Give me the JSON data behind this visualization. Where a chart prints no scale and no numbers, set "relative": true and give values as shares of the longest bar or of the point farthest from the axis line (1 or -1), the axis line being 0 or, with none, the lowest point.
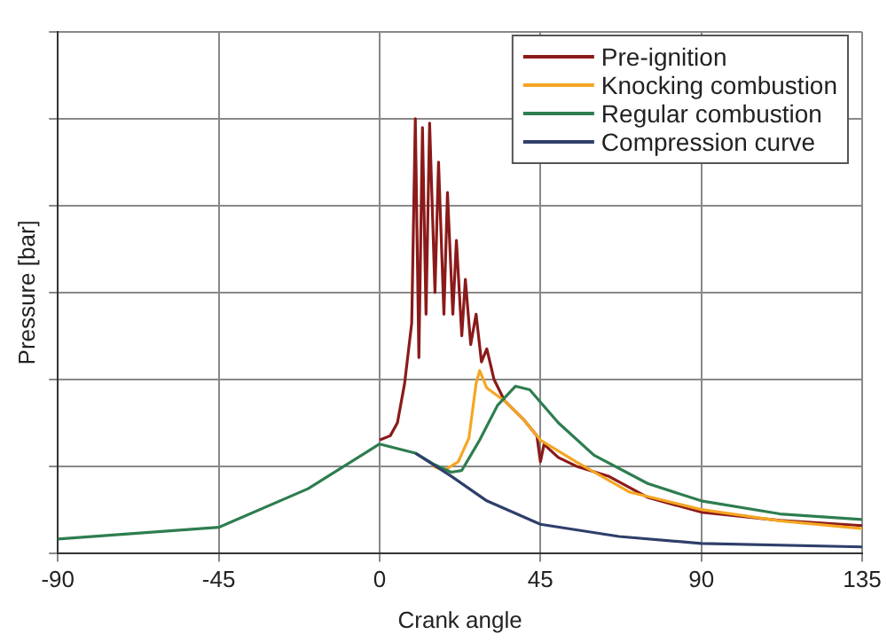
{
  "chart_data": {
    "type": "line",
    "relative": true,
    "xlabel": "Crank angle",
    "ylabel": "Pressure [bar]",
    "xlim": [
      -90,
      135
    ],
    "xticks": [
      -90,
      -45,
      0,
      45,
      90,
      135
    ],
    "grid": true,
    "legend": "top right",
    "marker": "none",
    "line_style": "solid",
    "series": [
      {
        "name": "Pre-ignition",
        "color": "#8b1a1a",
        "x": [
          0,
          3,
          5,
          7,
          9,
          10,
          11,
          12,
          13,
          14,
          15.5,
          16.5,
          18,
          19,
          20.5,
          21.5,
          23,
          24,
          25.5,
          27,
          28.5,
          30,
          32,
          35,
          40,
          44,
          45,
          46,
          50,
          55,
          64,
          75,
          90,
          112,
          135
        ],
        "values": [
          0.26,
          0.27,
          0.3,
          0.39,
          0.53,
          1,
          0.45,
          0.98,
          0.55,
          0.99,
          0.6,
          0.9,
          0.55,
          0.83,
          0.55,
          0.72,
          0.5,
          0.63,
          0.48,
          0.55,
          0.44,
          0.47,
          0.4,
          0.35,
          0.31,
          0.27,
          0.21,
          0.25,
          0.22,
          0.2,
          0.177,
          0.128,
          0.094,
          0.075,
          0.063
        ]
      },
      {
        "name": "Knocking combustion",
        "color": "#f5a623",
        "x": [
          15,
          18,
          22,
          25,
          27,
          28,
          30,
          35,
          40,
          45,
          55,
          70,
          90,
          112,
          135
        ],
        "values": [
          0.2,
          0.19,
          0.21,
          0.265,
          0.39,
          0.42,
          0.38,
          0.35,
          0.31,
          0.26,
          0.21,
          0.14,
          0.1,
          0.074,
          0.056
        ]
      },
      {
        "name": "Regular combustion",
        "color": "#2e7d4f",
        "x": [
          -90,
          -45,
          -20,
          0,
          10,
          15,
          20,
          23,
          28,
          33,
          38,
          42,
          50,
          60,
          75,
          90,
          112,
          135
        ],
        "values": [
          0.032,
          0.059,
          0.148,
          0.251,
          0.23,
          0.205,
          0.186,
          0.19,
          0.26,
          0.34,
          0.384,
          0.376,
          0.3,
          0.225,
          0.16,
          0.12,
          0.09,
          0.077
        ]
      },
      {
        "name": "Compression curve",
        "color": "#2f3f6b",
        "x": [
          10,
          20,
          30,
          45,
          67,
          90,
          135
        ],
        "values": [
          0.23,
          0.177,
          0.12,
          0.066,
          0.038,
          0.022,
          0.014
        ]
      }
    ]
  }
}
